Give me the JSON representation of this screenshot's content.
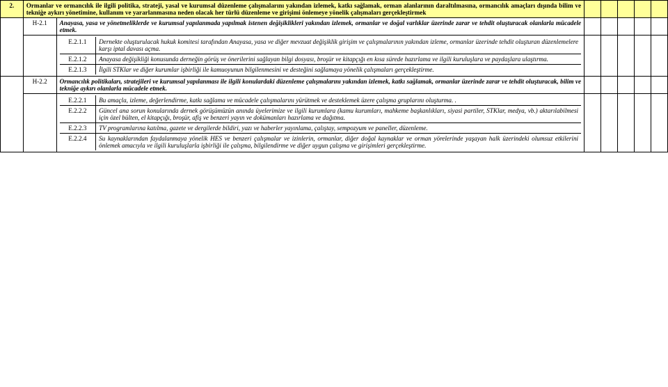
{
  "row2": {
    "num": "2.",
    "text": "Ormanlar ve ormancılık ile ilgili politika, strateji, yasal ve kurumsal düzenleme çalışmalarını yakından izlemek, katkı sağlamak, orman alanlarının daraltılmasına, ormancılık amaçları dışında bilim ve tekniğe aykırı yönetimine, kullanım ve yararlanmasına neden olacak her türlü düzenleme ve girişimi önlemeye yönelik çalışmaları gerçekleştirmek"
  },
  "h21": {
    "code": "H-2.1",
    "text": "Anayasa, yasa ve yönetmeliklerde ve kurumsal yapılanmada yapılmak istenen değişiklikleri yakından izlemek, ormanlar ve doğal varlıklar üzerinde zarar ve tehdit oluşturacak olanlarla mücadele etmek.",
    "items": [
      {
        "code": "E.2.1.1",
        "text": "Dernekte oluşturulacak hukuk komitesi tarafından Anayasa, yasa ve diğer mevzuat değişiklik girişim ve çalışmalarının yakından izleme, ormanlar üzerinde tehdit oluşturan düzenlemelere karşı iptal davası açma."
      },
      {
        "code": "E.2.1.2",
        "text": "Anayasa değişikliği konusunda derneğin görüş ve önerilerini sağlayan bilgi dosyası, broşür ve kitapçığı en kısa sürede hazırlama ve ilgili kuruluşlara ve paydaşlara ulaştırma."
      },
      {
        "code": "E.2.1.3",
        "text": "İlgili STKlar ve diğer kurumlar işbirliği ile kamuoyunun bilgilenmesini ve desteğini sağlamaya yönelik çalışmaları gerçekleştirme."
      }
    ]
  },
  "h22": {
    "code": "H-2.2",
    "text": "Ormancılık politikaları, stratejileri ve kurumsal yapılanması ile ilgili konulardaki düzenleme çalışmalarını yakından izlemek, katkı sağlamak, ormanlar üzerinde zarar ve tehdit oluşturacak, bilim ve tekniğe aykırı olanlarla mücadele etmek.",
    "items": [
      {
        "code": "E.2.2.1",
        "text": "Bu amaçla, izleme, değerlendirme, katkı sağlama ve mücadele çalışmalarını yürütmek ve desteklemek üzere çalışma gruplarını oluşturma. ."
      },
      {
        "code": "E.2.2.2",
        "text": "Güncel ana sorun konularında dernek görüşümüzün anında üyelerimize ve ilgili kurumlara (kamu kurumları, mahkeme başkanlıkları, siyasi partiler, STKlar, medya, vb.) aktarılabilmesi için özel bülten, el kitapçığı, broşür, afiş ve benzeri yayın ve dokümanları hazırlama ve dağıtma."
      },
      {
        "code": "E.2.2.3",
        "text": "TV programlarına katılma, gazete ve dergilerde bildiri, yazı ve haberler yayınlama, çalıştay, sempozyum ve  paneller, düzenleme."
      },
      {
        "code": "E.2.2.4",
        "text": "Su kaynaklarından faydalanmaya yönelik HES ve benzeri çalışmalar ve izinlerin, ormanlar, diğer doğal kaynaklar ve orman yörelerinde yaşayan halk üzerindeki olumsuz etkilerini önlemek amacıyla ve ilgili kuruluşlarla işbirliği ile çalışma, bilgilendirme ve diğer uygun  çalışma ve girişimleri gerçekleştirme."
      }
    ]
  }
}
